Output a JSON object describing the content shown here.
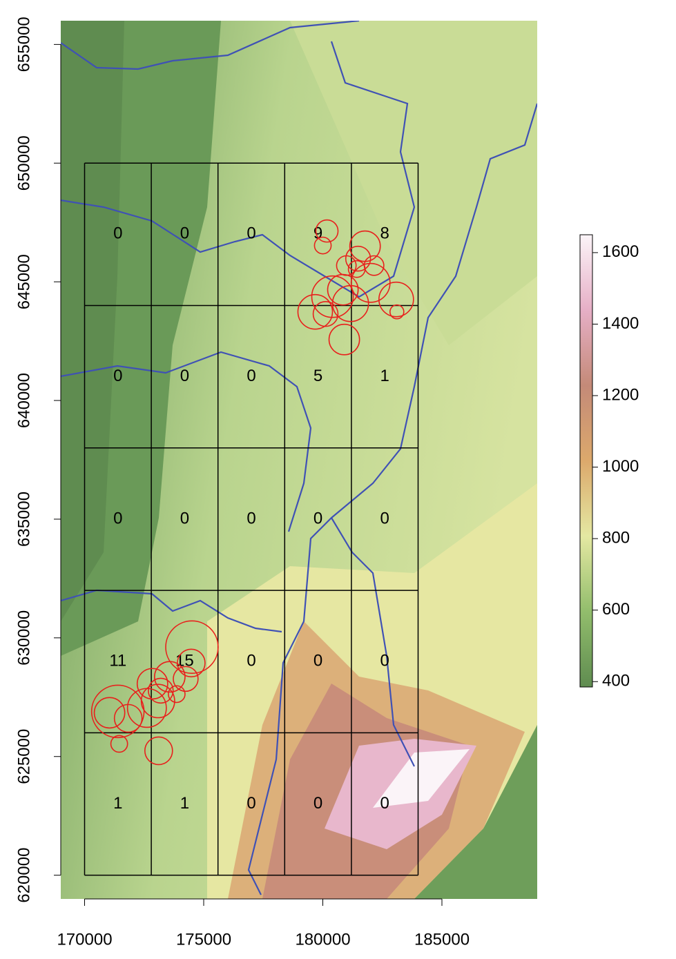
{
  "chart_data": {
    "type": "map",
    "xlim": [
      169000,
      189000
    ],
    "ylim": [
      619000,
      656000
    ],
    "xticks": [
      170000,
      175000,
      180000,
      185000
    ],
    "yticks": [
      620000,
      625000,
      630000,
      635000,
      640000,
      645000,
      650000,
      655000
    ],
    "grid_x": [
      170000,
      172800,
      175600,
      178400,
      181200,
      184000
    ],
    "grid_y": [
      620000,
      626000,
      632000,
      638000,
      644000,
      650000
    ],
    "cell_counts": [
      [
        0,
        0,
        0,
        9,
        8
      ],
      [
        0,
        0,
        0,
        5,
        1
      ],
      [
        0,
        0,
        0,
        0,
        0
      ],
      [
        11,
        15,
        0,
        0,
        0
      ],
      [
        1,
        1,
        0,
        0,
        0
      ]
    ],
    "points": {
      "color": "#e8201c",
      "x": [
        180174,
        180000,
        181773,
        181483,
        180988,
        182151,
        181424,
        182006,
        180843,
        180407,
        181163,
        183081,
        183110,
        179680,
        180116,
        180901,
        174506,
        174477,
        174244,
        173576,
        172849,
        173198,
        173866,
        173081,
        172616,
        171395,
        171047,
        171831,
        171453,
        173110
      ],
      "y": [
        647140,
        646530,
        646500,
        645975,
        645684,
        645684,
        645540,
        644956,
        644665,
        644374,
        644083,
        644258,
        643734,
        643734,
        643646,
        642568,
        629610,
        628940,
        628270,
        628358,
        628066,
        627775,
        627630,
        627338,
        627047,
        626900,
        626843,
        626610,
        625533,
        625242
      ],
      "size": [
        465,
        350,
        640,
        520,
        410,
        410,
        350,
        815,
        640,
        870,
        755,
        725,
        290,
        725,
        520,
        640,
        1100,
        580,
        520,
        640,
        640,
        520,
        350,
        700,
        815,
        1100,
        640,
        580,
        350,
        580
      ]
    },
    "colorbar": {
      "lim": [
        385,
        1650
      ],
      "ticks": [
        400,
        600,
        800,
        1000,
        1200,
        1400,
        1600
      ],
      "colors": [
        "#5f8c50",
        "#92bd6c",
        "#e4e8a2",
        "#dca96c",
        "#c48a78",
        "#e6afc6",
        "#fbf4f8"
      ]
    }
  }
}
